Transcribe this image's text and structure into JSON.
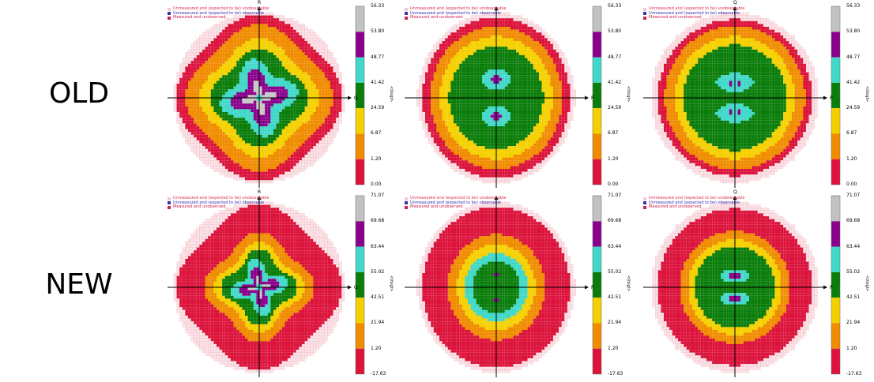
{
  "row_labels": {
    "old": "OLD",
    "new": "NEW"
  },
  "legend": [
    {
      "text": "Unmeasured and (expected to be) unobservable",
      "color": "#f4c7cf",
      "text_color": "#e0304e"
    },
    {
      "text": "Unmeasured and (expected to be) observable",
      "color": "#3a2fb0",
      "text_color": "#3a2fb0"
    },
    {
      "text": "Measured and unobserved",
      "color": "#d0204a",
      "text_color": "#d0204a"
    }
  ],
  "colorbar_title": "<I/sigI>",
  "level_colors": [
    "#dc143c",
    "#f08c00",
    "#f5d000",
    "#0a7d0a",
    "#40d8c8",
    "#8b008b",
    "#c8c8c8"
  ],
  "chart_data": [
    {
      "type": "heatmap",
      "row": "OLD",
      "axes": [
        "R",
        "Q"
      ],
      "colorbar_ticks": [
        "56.33",
        "53.80",
        "48.77",
        "41.42",
        "24.59",
        "6.87",
        "1.20",
        "0.00"
      ],
      "pattern": "old-rq"
    },
    {
      "type": "heatmap",
      "row": "OLD",
      "axes": [
        "",
        "P"
      ],
      "colorbar_ticks": [
        "56.33",
        "53.80",
        "48.77",
        "41.42",
        "24.59",
        "6.87",
        "1.20",
        "0.00"
      ],
      "pattern": "old-p"
    },
    {
      "type": "heatmap",
      "row": "OLD",
      "axes": [
        "Q",
        "P"
      ],
      "colorbar_ticks": [
        "56.33",
        "53.80",
        "48.77",
        "41.42",
        "24.59",
        "6.87",
        "1.20",
        "0.00"
      ],
      "pattern": "old-qp"
    },
    {
      "type": "heatmap",
      "row": "NEW",
      "axes": [
        "R",
        "Q"
      ],
      "colorbar_ticks": [
        "71.07",
        "69.68",
        "63.44",
        "55.02",
        "42.51",
        "21.94",
        "1.20",
        "-17.63"
      ],
      "pattern": "new-rq"
    },
    {
      "type": "heatmap",
      "row": "NEW",
      "axes": [
        "",
        "P"
      ],
      "colorbar_ticks": [
        "71.07",
        "69.68",
        "63.44",
        "55.02",
        "42.51",
        "21.94",
        "1.20",
        "-17.63"
      ],
      "pattern": "new-p"
    },
    {
      "type": "heatmap",
      "row": "NEW",
      "axes": [
        "Q",
        "P"
      ],
      "colorbar_ticks": [
        "71.07",
        "69.68",
        "63.44",
        "55.02",
        "42.51",
        "21.94",
        "1.20",
        "-17.63"
      ],
      "pattern": "new-qp"
    }
  ]
}
